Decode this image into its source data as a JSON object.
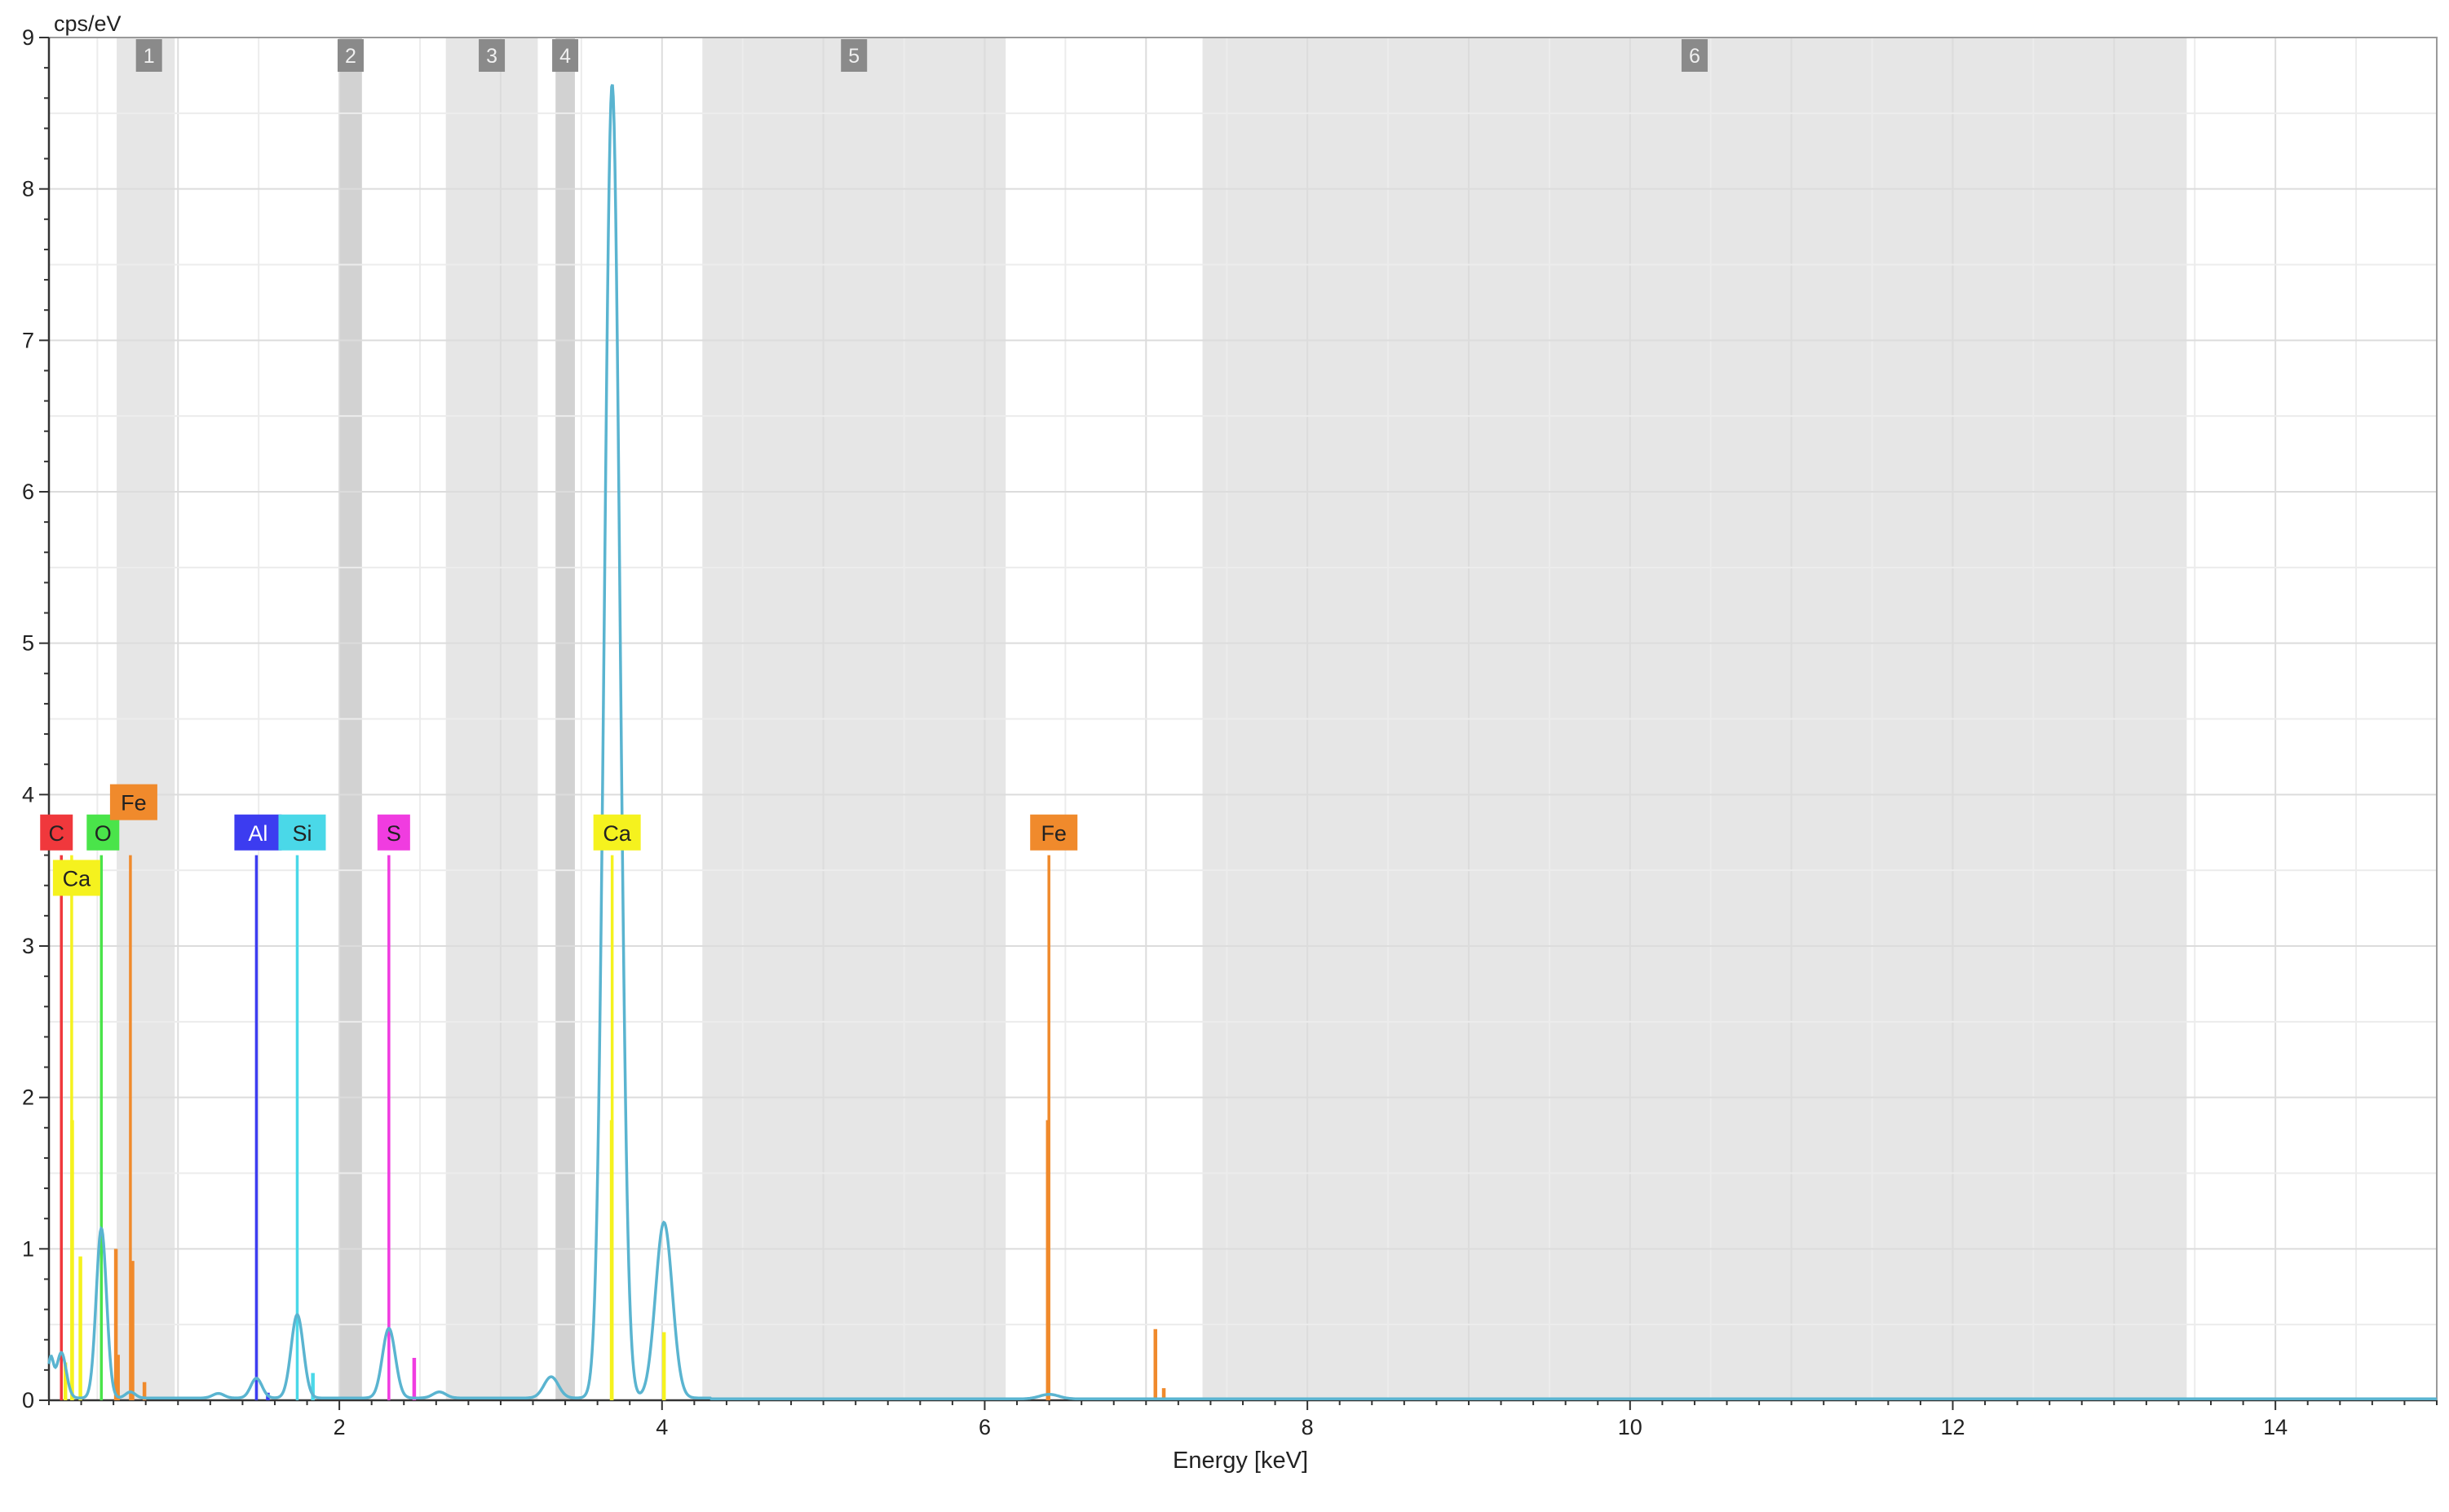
{
  "chart_data": {
    "type": "line",
    "xlabel": "Energy [keV]",
    "ylabel": "cps/eV",
    "xlim": [
      0.2,
      15
    ],
    "ylim": [
      0,
      9
    ],
    "x_ticks": [
      2,
      4,
      6,
      8,
      10,
      12,
      14
    ],
    "y_ticks": [
      0,
      1,
      2,
      3,
      4,
      5,
      6,
      7,
      8,
      9
    ],
    "grid": true,
    "colors": {
      "spectrum": "#5ab4d0",
      "region": "#e6e6e6",
      "region_dark": "#d2d2d2",
      "region_label_bg": "#8a8a8a",
      "C": "#f0383c",
      "O": "#4ae44a",
      "Fe": "#f08a2c",
      "Ca": "#f5f21e",
      "Al": "#3c3cf0",
      "Si": "#4ad8e8",
      "S": "#f03ce0"
    },
    "regions": [
      {
        "label": "1",
        "x": [
          0.62,
          0.98
        ]
      },
      {
        "label": "2",
        "x": [
          2.0,
          2.14
        ]
      },
      {
        "label": "3",
        "x": [
          2.66,
          3.23
        ]
      },
      {
        "label": "4",
        "x": [
          3.34,
          3.46
        ]
      },
      {
        "label": "5",
        "x": [
          4.25,
          6.13
        ]
      },
      {
        "label": "6",
        "x": [
          7.35,
          13.45
        ]
      }
    ],
    "element_lines": [
      {
        "element": "C",
        "label": "C",
        "x": 0.277,
        "label_y": 3.75,
        "lines": [
          [
            0.277,
            3.6
          ]
        ]
      },
      {
        "element": "O",
        "label": "O",
        "x": 0.525,
        "label_y": 3.75,
        "lines": [
          [
            0.525,
            3.6
          ]
        ]
      },
      {
        "element": "Fe",
        "label": "Fe",
        "x": 0.705,
        "label_y": 3.95,
        "lines": [
          [
            0.705,
            3.6
          ],
          [
            0.615,
            1.0
          ],
          [
            0.718,
            0.92
          ],
          [
            0.628,
            0.3
          ],
          [
            0.792,
            0.12
          ]
        ]
      },
      {
        "element": "Ca",
        "label": "Ca",
        "x": 0.341,
        "label_y": 3.45,
        "lines": [
          [
            0.341,
            3.6
          ],
          [
            0.344,
            1.85
          ],
          [
            0.302,
            0.25
          ],
          [
            0.395,
            0.95
          ]
        ]
      },
      {
        "element": "Al",
        "label": "Al",
        "x": 1.486,
        "label_y": 3.75,
        "lines": [
          [
            1.486,
            3.6
          ],
          [
            1.557,
            0.05
          ]
        ]
      },
      {
        "element": "Si",
        "label": "Si",
        "x": 1.739,
        "label_y": 3.75,
        "lines": [
          [
            1.739,
            3.6
          ],
          [
            1.836,
            0.18
          ]
        ]
      },
      {
        "element": "S",
        "label": "S",
        "x": 2.307,
        "label_y": 3.75,
        "lines": [
          [
            2.307,
            3.6
          ],
          [
            2.464,
            0.28
          ]
        ]
      },
      {
        "element": "Ca",
        "label": "Ca",
        "x": 3.691,
        "label_y": 3.75,
        "lines": [
          [
            3.691,
            3.6
          ],
          [
            3.688,
            1.85
          ],
          [
            4.012,
            0.45
          ]
        ]
      },
      {
        "element": "Fe",
        "label": "Fe",
        "x": 6.398,
        "label_y": 3.75,
        "lines": [
          [
            6.398,
            3.6
          ],
          [
            6.391,
            1.85
          ],
          [
            7.058,
            0.47
          ],
          [
            7.11,
            0.08
          ]
        ]
      }
    ],
    "spectrum_peaks": [
      {
        "x": 0.21,
        "y": 0.25,
        "w": 0.018
      },
      {
        "x": 0.277,
        "y": 0.3,
        "w": 0.03
      },
      {
        "x": 0.525,
        "y": 1.12,
        "w": 0.032
      },
      {
        "x": 0.705,
        "y": 0.04,
        "w": 0.03
      },
      {
        "x": 1.25,
        "y": 0.03,
        "w": 0.035
      },
      {
        "x": 1.486,
        "y": 0.13,
        "w": 0.035
      },
      {
        "x": 1.739,
        "y": 0.55,
        "w": 0.038
      },
      {
        "x": 2.307,
        "y": 0.46,
        "w": 0.04
      },
      {
        "x": 2.62,
        "y": 0.04,
        "w": 0.04
      },
      {
        "x": 3.313,
        "y": 0.14,
        "w": 0.045
      },
      {
        "x": 3.691,
        "y": 8.68,
        "w": 0.048
      },
      {
        "x": 4.012,
        "y": 1.16,
        "w": 0.052
      },
      {
        "x": 6.4,
        "y": 0.03,
        "w": 0.06
      }
    ],
    "spectrum_background": 0.015
  }
}
